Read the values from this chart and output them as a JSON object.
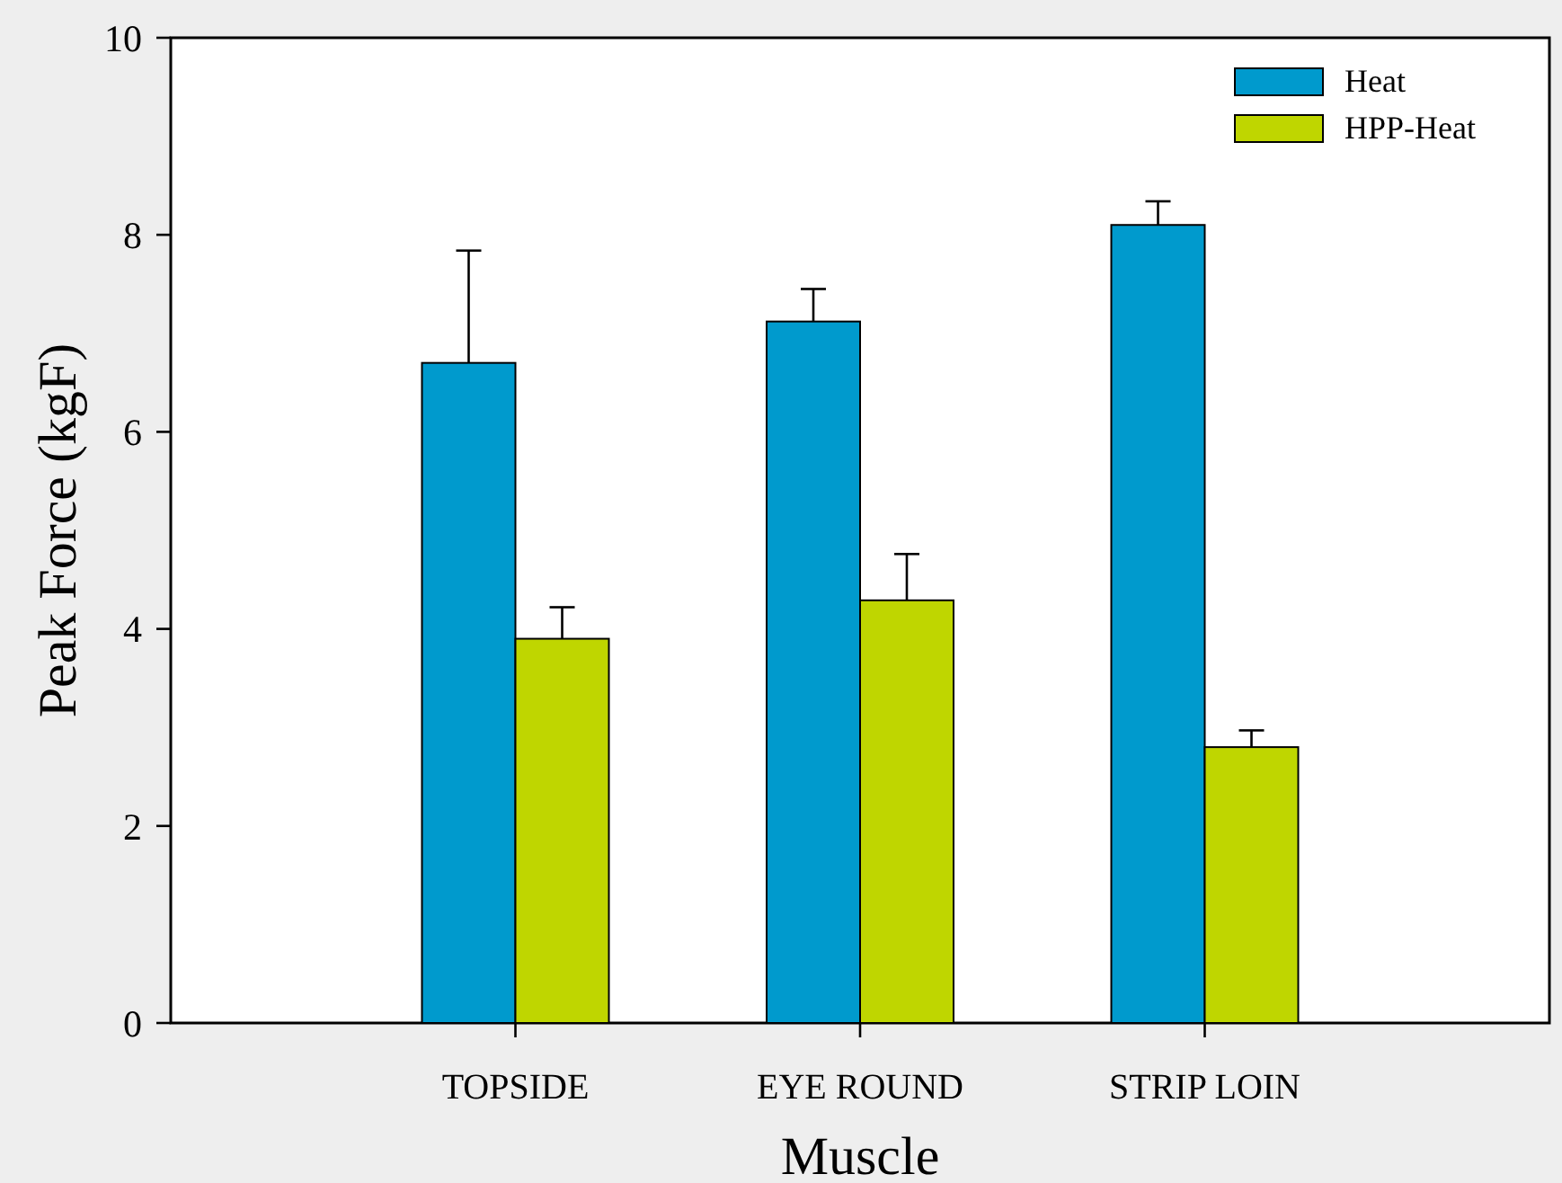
{
  "chart_data": {
    "type": "bar",
    "xlabel": "Muscle",
    "ylabel": "Peak Force (kgF)",
    "categories": [
      "TOPSIDE",
      "EYE ROUND",
      "STRIP LOIN"
    ],
    "series": [
      {
        "name": "Heat",
        "color": "#009acd",
        "values": [
          6.7,
          7.12,
          8.1
        ],
        "errors": [
          [
            6.7,
            7.84
          ],
          [
            7.12,
            7.45
          ],
          [
            8.1,
            8.34
          ]
        ]
      },
      {
        "name": "HPP-Heat",
        "color": "#bfd600",
        "values": [
          3.9,
          4.29,
          2.8
        ],
        "errors": [
          [
            3.9,
            4.22
          ],
          [
            4.29,
            4.76
          ],
          [
            2.8,
            2.97
          ]
        ]
      }
    ],
    "ylim": [
      0,
      10
    ],
    "yticks": [
      0,
      2,
      4,
      6,
      8,
      10
    ],
    "grid": false,
    "legend": "top right"
  }
}
